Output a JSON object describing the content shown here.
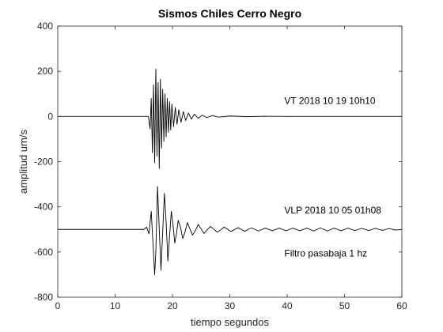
{
  "chart_data": {
    "type": "line",
    "title": "Sismos Chiles Cerro Negro",
    "xlabel": "tiempo segundos",
    "ylabel": "amplitud um/s",
    "xlim": [
      0,
      60
    ],
    "ylim": [
      -800,
      400
    ],
    "xticks": [
      "0",
      "10",
      "20",
      "30",
      "40",
      "50",
      "60"
    ],
    "yticks": [
      "400",
      "200",
      "0",
      "-200",
      "-400",
      "-600",
      "-800"
    ],
    "grid": false,
    "line_color": "#000000",
    "series": [
      {
        "name": "VT 2018 10 19 10h10",
        "baseline": 0,
        "points": [
          [
            0,
            0
          ],
          [
            15.8,
            0
          ],
          [
            16.1,
            -55
          ],
          [
            16.3,
            80
          ],
          [
            16.5,
            -160
          ],
          [
            16.7,
            140
          ],
          [
            16.9,
            -205
          ],
          [
            17.1,
            210
          ],
          [
            17.3,
            -175
          ],
          [
            17.5,
            150
          ],
          [
            17.7,
            -230
          ],
          [
            17.9,
            165
          ],
          [
            18.1,
            -140
          ],
          [
            18.3,
            120
          ],
          [
            18.5,
            -110
          ],
          [
            18.7,
            100
          ],
          [
            18.9,
            -90
          ],
          [
            19.1,
            80
          ],
          [
            19.3,
            -70
          ],
          [
            19.5,
            65
          ],
          [
            19.7,
            -60
          ],
          [
            19.9,
            55
          ],
          [
            20.2,
            -45
          ],
          [
            20.5,
            40
          ],
          [
            20.8,
            -35
          ],
          [
            21.1,
            30
          ],
          [
            21.5,
            -26
          ],
          [
            21.9,
            22
          ],
          [
            22.3,
            -18
          ],
          [
            22.8,
            15
          ],
          [
            23.3,
            -12
          ],
          [
            23.8,
            10
          ],
          [
            24.5,
            -8
          ],
          [
            25.2,
            6
          ],
          [
            26,
            -5
          ],
          [
            27,
            4
          ],
          [
            28,
            -3
          ],
          [
            30,
            2
          ],
          [
            33,
            -1
          ],
          [
            36,
            1
          ],
          [
            40,
            0
          ],
          [
            60,
            0
          ]
        ]
      },
      {
        "name": "VLP 2018 10 05 01h08",
        "baseline": -500,
        "points": [
          [
            0,
            -500
          ],
          [
            15,
            -500
          ],
          [
            15.5,
            -490
          ],
          [
            15.9,
            -520
          ],
          [
            16.3,
            -420
          ],
          [
            16.6,
            -560
          ],
          [
            16.9,
            -700
          ],
          [
            17.1,
            -600
          ],
          [
            17.4,
            -310
          ],
          [
            17.7,
            -500
          ],
          [
            18,
            -680
          ],
          [
            18.3,
            -510
          ],
          [
            18.6,
            -340
          ],
          [
            18.9,
            -470
          ],
          [
            19.2,
            -640
          ],
          [
            19.5,
            -530
          ],
          [
            19.8,
            -420
          ],
          [
            20.1,
            -480
          ],
          [
            20.4,
            -560
          ],
          [
            20.7,
            -520
          ],
          [
            21,
            -460
          ],
          [
            21.4,
            -490
          ],
          [
            21.8,
            -540
          ],
          [
            22.2,
            -510
          ],
          [
            22.6,
            -470
          ],
          [
            23,
            -495
          ],
          [
            23.5,
            -525
          ],
          [
            24,
            -505
          ],
          [
            24.5,
            -478
          ],
          [
            25,
            -498
          ],
          [
            25.5,
            -518
          ],
          [
            26,
            -503
          ],
          [
            26.6,
            -487
          ],
          [
            27.2,
            -498
          ],
          [
            27.8,
            -512
          ],
          [
            28.4,
            -502
          ],
          [
            29,
            -490
          ],
          [
            29.6,
            -499
          ],
          [
            30.2,
            -509
          ],
          [
            30.8,
            -501
          ],
          [
            31.4,
            -492
          ],
          [
            32,
            -500
          ],
          [
            32.6,
            -508
          ],
          [
            33.2,
            -500
          ],
          [
            33.8,
            -493
          ],
          [
            34.4,
            -500
          ],
          [
            35,
            -507
          ],
          [
            35.6,
            -500
          ],
          [
            36.2,
            -494
          ],
          [
            36.8,
            -500
          ],
          [
            37.4,
            -506
          ],
          [
            38,
            -500
          ],
          [
            38.6,
            -494
          ],
          [
            39.2,
            -500
          ],
          [
            39.8,
            -506
          ],
          [
            40.4,
            -500
          ],
          [
            41,
            -494
          ],
          [
            41.6,
            -500
          ],
          [
            42.2,
            -506
          ],
          [
            42.8,
            -500
          ],
          [
            43.4,
            -494
          ],
          [
            44,
            -500
          ],
          [
            44.6,
            -507
          ],
          [
            45.2,
            -500
          ],
          [
            45.8,
            -493
          ],
          [
            46.4,
            -500
          ],
          [
            47,
            -507
          ],
          [
            47.6,
            -500
          ],
          [
            48.2,
            -494
          ],
          [
            48.8,
            -500
          ],
          [
            49.4,
            -506
          ],
          [
            50,
            -500
          ],
          [
            50.6,
            -494
          ],
          [
            51.2,
            -500
          ],
          [
            51.8,
            -505
          ],
          [
            52.4,
            -500
          ],
          [
            53,
            -495
          ],
          [
            53.6,
            -500
          ],
          [
            54.2,
            -505
          ],
          [
            54.8,
            -500
          ],
          [
            55.4,
            -495
          ],
          [
            56,
            -500
          ],
          [
            56.6,
            -504
          ],
          [
            57.2,
            -500
          ],
          [
            57.8,
            -496
          ],
          [
            58.4,
            -500
          ],
          [
            59,
            -503
          ],
          [
            60,
            -500
          ]
        ]
      }
    ],
    "annotations": [
      {
        "text": "VT 2018 10 19 10h10",
        "x": 39.5,
        "y": 55
      },
      {
        "text": "VLP 2018 10 05 01h08",
        "x": 39.5,
        "y": -430
      },
      {
        "text": "Filtro pasabaja 1 hz",
        "x": 39.5,
        "y": -620
      }
    ]
  }
}
